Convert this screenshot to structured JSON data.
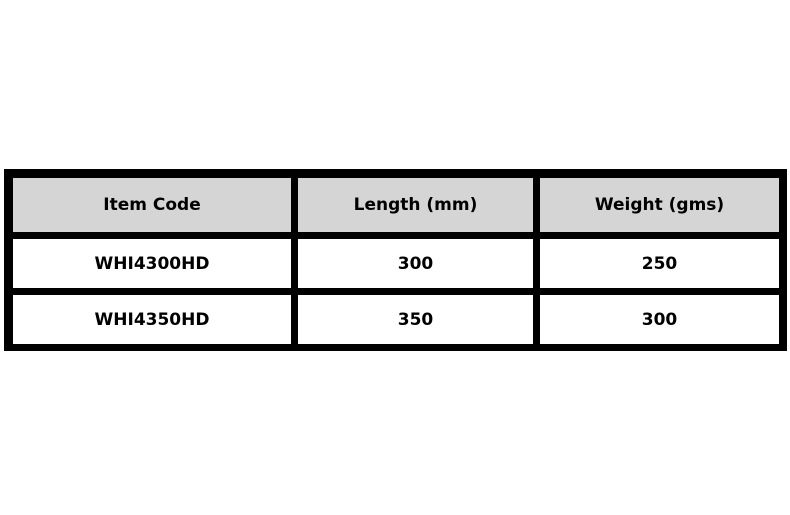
{
  "table": {
    "headers": [
      "Item Code",
      "Length (mm)",
      "Weight (gms)"
    ],
    "rows": [
      [
        "WHI4300HD",
        "300",
        "250"
      ],
      [
        "WHI4350HD",
        "350",
        "300"
      ]
    ],
    "colors": {
      "header_bg": "#d5d5d5",
      "border": "#000000"
    }
  }
}
